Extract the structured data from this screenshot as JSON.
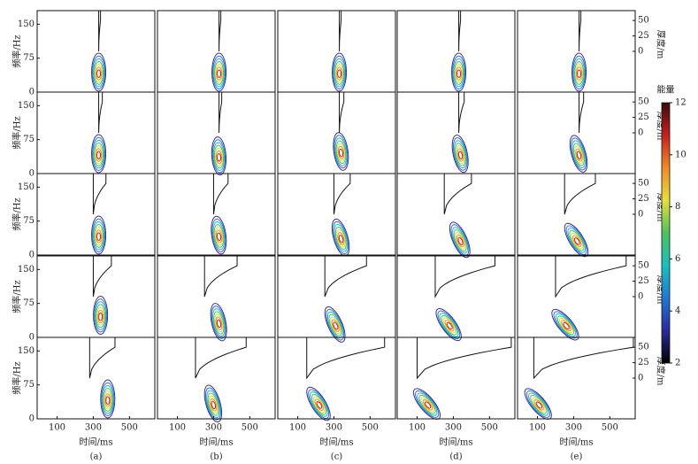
{
  "chart_data": {
    "type": "contour",
    "columns": [
      "(a)",
      "(b)",
      "(c)",
      "(d)",
      "(e)"
    ],
    "xlabel": "时间/ms",
    "ylabel": "频率/Hz",
    "y2label": "厚度/m",
    "xlim": [
      -10,
      640
    ],
    "xticks": [
      100,
      300,
      500
    ],
    "ylim": [
      0,
      180
    ],
    "yticks": [
      0,
      75,
      150
    ],
    "y2lim": [
      -66,
      66
    ],
    "y2ticks": [
      0,
      25,
      50
    ],
    "contour_colors": [
      "#3b2c9a",
      "#2f6fd8",
      "#1fb7c4",
      "#4cc35a",
      "#e6d83a",
      "#f08a24",
      "#c8201e"
    ],
    "colorbar": {
      "label": "能量",
      "lim": [
        2,
        12
      ],
      "ticks": [
        2,
        4,
        6,
        8,
        10,
        12
      ],
      "colors": [
        "#000000",
        "#2a2a9e",
        "#1f78d8",
        "#18c0c0",
        "#4cc35a",
        "#e6e03a",
        "#f08a24",
        "#c8201e",
        "#3a0a0a"
      ]
    },
    "panels": [
      [
        {
          "peak": {
            "time": 330,
            "frequency": 40
          },
          "wedge": {
            "start": 330,
            "end": 340
          }
        },
        {
          "peak": {
            "time": 330,
            "frequency": 40
          },
          "wedge": {
            "start": 330,
            "end": 340
          }
        },
        {
          "peak": {
            "time": 330,
            "frequency": 40
          },
          "wedge": {
            "start": 330,
            "end": 340
          }
        },
        {
          "peak": {
            "time": 330,
            "frequency": 40
          },
          "wedge": {
            "start": 330,
            "end": 340
          }
        },
        {
          "peak": {
            "time": 330,
            "frequency": 40
          },
          "wedge": {
            "start": 330,
            "end": 340
          }
        }
      ],
      [
        {
          "peak": {
            "time": 330,
            "frequency": 40
          },
          "wedge": {
            "start": 330,
            "end": 350
          }
        },
        {
          "peak": {
            "time": 330,
            "frequency": 35
          },
          "wedge": {
            "start": 330,
            "end": 345
          }
        },
        {
          "peak": {
            "time": 340,
            "frequency": 45
          },
          "wedge": {
            "start": 330,
            "end": 355
          }
        },
        {
          "peak": {
            "time": 340,
            "frequency": 40
          },
          "wedge": {
            "start": 330,
            "end": 360
          }
        },
        {
          "peak": {
            "time": 330,
            "frequency": 40
          },
          "wedge": {
            "start": 330,
            "end": 355
          }
        }
      ],
      [
        {
          "peak": {
            "time": 330,
            "frequency": 40
          },
          "wedge": {
            "start": 300,
            "end": 370
          }
        },
        {
          "peak": {
            "time": 330,
            "frequency": 40
          },
          "wedge": {
            "start": 300,
            "end": 380
          }
        },
        {
          "peak": {
            "time": 340,
            "frequency": 35
          },
          "wedge": {
            "start": 300,
            "end": 390
          }
        },
        {
          "peak": {
            "time": 340,
            "frequency": 30
          },
          "wedge": {
            "start": 250,
            "end": 400
          }
        },
        {
          "peak": {
            "time": 320,
            "frequency": 30
          },
          "wedge": {
            "start": 250,
            "end": 420
          }
        }
      ],
      [
        {
          "peak": {
            "time": 340,
            "frequency": 45
          },
          "wedge": {
            "start": 300,
            "end": 400
          }
        },
        {
          "peak": {
            "time": 330,
            "frequency": 30
          },
          "wedge": {
            "start": 250,
            "end": 430
          }
        },
        {
          "peak": {
            "time": 310,
            "frequency": 25
          },
          "wedge": {
            "start": 250,
            "end": 480
          }
        },
        {
          "peak": {
            "time": 280,
            "frequency": 25
          },
          "wedge": {
            "start": 200,
            "end": 530
          }
        },
        {
          "peak": {
            "time": 260,
            "frequency": 25
          },
          "wedge": {
            "start": 200,
            "end": 590
          }
        }
      ],
      [
        {
          "peak": {
            "time": 380,
            "frequency": 40
          },
          "wedge": {
            "start": 280,
            "end": 420
          }
        },
        {
          "peak": {
            "time": 300,
            "frequency": 30
          },
          "wedge": {
            "start": 200,
            "end": 480
          }
        },
        {
          "peak": {
            "time": 220,
            "frequency": 30
          },
          "wedge": {
            "start": 150,
            "end": 580
          }
        },
        {
          "peak": {
            "time": 160,
            "frequency": 30
          },
          "wedge": {
            "start": 100,
            "end": 620
          }
        },
        {
          "peak": {
            "time": 110,
            "frequency": 30
          },
          "wedge": {
            "start": 80,
            "end": 630
          }
        }
      ]
    ]
  }
}
